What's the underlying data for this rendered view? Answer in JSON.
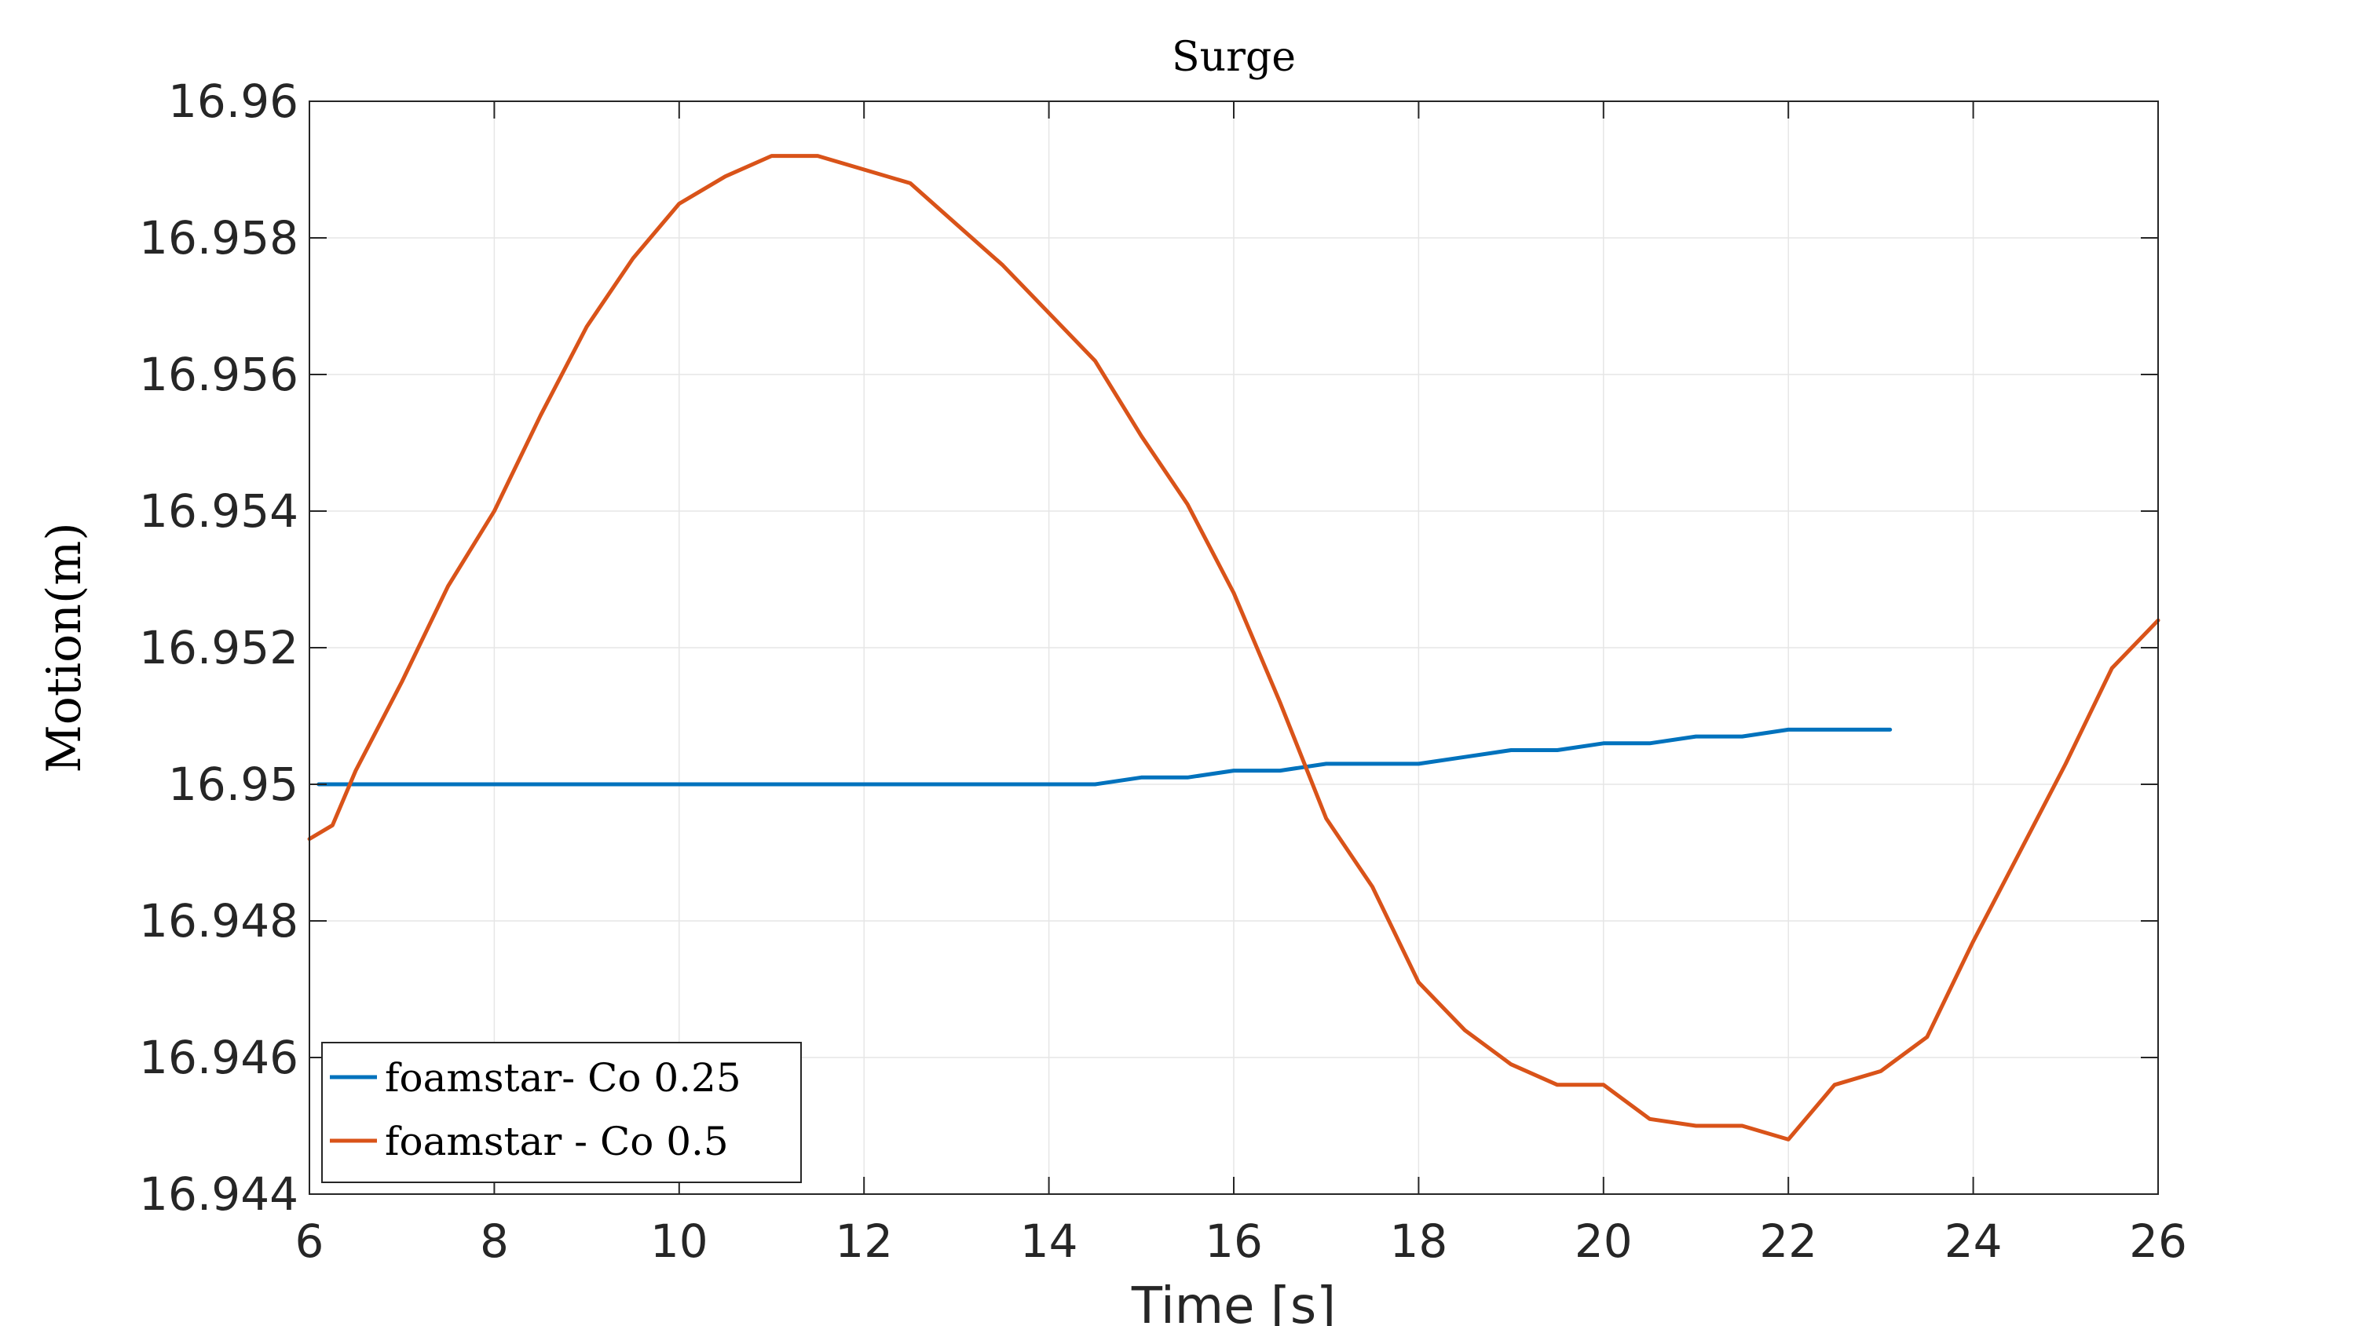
{
  "chart_data": {
    "type": "line",
    "title": "Surge",
    "xlabel": "Time [s]",
    "ylabel": "Motion(m)",
    "xlim": [
      6,
      26
    ],
    "ylim": [
      16.944,
      16.96
    ],
    "xticks": [
      6,
      8,
      10,
      12,
      14,
      16,
      18,
      20,
      22,
      24,
      26
    ],
    "xtick_labels": [
      "6",
      "8",
      "10",
      "12",
      "14",
      "16",
      "18",
      "20",
      "22",
      "24",
      "26"
    ],
    "yticks": [
      16.944,
      16.946,
      16.948,
      16.95,
      16.952,
      16.954,
      16.956,
      16.958,
      16.96
    ],
    "ytick_labels": [
      "16.944",
      "16.946",
      "16.948",
      "16.95",
      "16.952",
      "16.954",
      "16.956",
      "16.958",
      "16.96"
    ],
    "grid": true,
    "legend_position": "bottom-left",
    "series": [
      {
        "name": "foamstar- Co 0.25",
        "color": "#0072BD",
        "x": [
          6.1,
          7,
          8,
          9,
          10,
          11,
          12,
          13,
          13.5,
          14,
          14.5,
          15,
          15.5,
          16,
          16.5,
          17,
          17.5,
          18,
          18.5,
          19,
          19.5,
          20,
          20.5,
          21,
          21.5,
          22,
          22.5,
          23.1
        ],
        "y": [
          16.95,
          16.95,
          16.95,
          16.95,
          16.95,
          16.95,
          16.95,
          16.95,
          16.95,
          16.95,
          16.95,
          16.9501,
          16.9501,
          16.9502,
          16.9502,
          16.9503,
          16.9503,
          16.9503,
          16.9504,
          16.9505,
          16.9505,
          16.9506,
          16.9506,
          16.9507,
          16.9507,
          16.9508,
          16.9508,
          16.9508
        ]
      },
      {
        "name": "foamstar - Co 0.5",
        "color": "#D95319",
        "x": [
          6,
          6.25,
          6.5,
          7,
          7.5,
          8,
          8.5,
          9,
          9.5,
          10,
          10.5,
          11,
          11.5,
          12,
          12.5,
          13,
          13.5,
          14,
          14.5,
          15,
          15.5,
          16,
          16.5,
          17,
          17.5,
          18,
          18.5,
          19,
          19.5,
          20,
          20.5,
          21,
          21.5,
          22,
          22.5,
          23,
          23.5,
          24,
          24.5,
          25,
          25.5,
          26
        ],
        "y": [
          16.9492,
          16.9494,
          16.9502,
          16.9515,
          16.9529,
          16.954,
          16.9554,
          16.9567,
          16.9577,
          16.9585,
          16.9589,
          16.9592,
          16.9592,
          16.959,
          16.9588,
          16.9582,
          16.9576,
          16.9569,
          16.9562,
          16.9551,
          16.9541,
          16.9528,
          16.9512,
          16.9495,
          16.9485,
          16.9471,
          16.9464,
          16.9459,
          16.9456,
          16.9456,
          16.9451,
          16.945,
          16.945,
          16.9448,
          16.9456,
          16.9458,
          16.9463,
          16.9477,
          16.949,
          16.9503,
          16.9517,
          16.9524
        ]
      }
    ]
  }
}
